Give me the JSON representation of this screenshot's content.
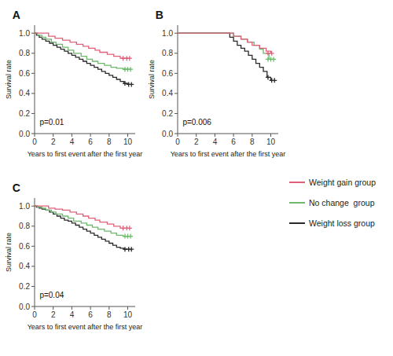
{
  "chart_data": [
    {
      "type": "step",
      "title": "A",
      "annotation": "p=0.01",
      "x_label": "Years to first event after the first year",
      "y_label": "Survival rate",
      "xlim": [
        0,
        10.8
      ],
      "ylim": [
        0.0,
        1.08
      ],
      "xticks": [
        0,
        2,
        4,
        6,
        8,
        10
      ],
      "yticks": [
        {
          "value": 0.0,
          "label": "0.0"
        },
        0.2,
        0.4,
        0.6,
        0.8,
        {
          "value": 1.0,
          "label": "1.0"
        }
      ],
      "legend": "right",
      "series": [
        {
          "name": "Weight gain group",
          "color": "#e0607a",
          "x": [
            0,
            1.0,
            1.5,
            2.2,
            3.0,
            3.8,
            4.5,
            5.2,
            5.8,
            6.5,
            7.0,
            7.8,
            8.5,
            9.2,
            10.0
          ],
          "values": [
            1.0,
            1.0,
            0.97,
            0.95,
            0.93,
            0.91,
            0.89,
            0.87,
            0.85,
            0.83,
            0.81,
            0.79,
            0.77,
            0.75,
            0.75
          ],
          "censor_x": [
            9.5,
            9.9,
            10.2
          ],
          "censor_y": [
            0.75,
            0.75,
            0.75
          ]
        },
        {
          "name": "No change  group",
          "color": "#6db86d",
          "x": [
            0,
            0.3,
            0.8,
            1.2,
            1.8,
            2.3,
            3.0,
            3.6,
            4.2,
            5.0,
            5.6,
            6.2,
            6.8,
            7.5,
            8.2,
            8.8,
            9.5,
            10.0
          ],
          "values": [
            1.0,
            0.98,
            0.96,
            0.94,
            0.91,
            0.89,
            0.86,
            0.83,
            0.8,
            0.77,
            0.74,
            0.72,
            0.7,
            0.68,
            0.66,
            0.65,
            0.64,
            0.64
          ],
          "censor_x": [
            9.7,
            10.0,
            10.3
          ],
          "censor_y": [
            0.64,
            0.64,
            0.64
          ]
        },
        {
          "name": "Weight loss group",
          "color": "#2a2a2a",
          "x": [
            0,
            0.2,
            0.5,
            0.8,
            1.2,
            1.6,
            2.0,
            2.4,
            2.8,
            3.2,
            3.6,
            4.0,
            4.4,
            4.8,
            5.2,
            5.6,
            6.0,
            6.4,
            6.8,
            7.2,
            7.6,
            8.0,
            8.4,
            8.8,
            9.2,
            9.6,
            10.0
          ],
          "values": [
            1.0,
            0.98,
            0.96,
            0.94,
            0.92,
            0.9,
            0.88,
            0.86,
            0.84,
            0.82,
            0.8,
            0.78,
            0.76,
            0.74,
            0.72,
            0.7,
            0.68,
            0.66,
            0.64,
            0.62,
            0.6,
            0.58,
            0.56,
            0.54,
            0.52,
            0.5,
            0.49
          ],
          "censor_x": [
            9.7,
            10.1,
            10.4
          ],
          "censor_y": [
            0.5,
            0.49,
            0.49
          ]
        }
      ]
    },
    {
      "type": "step",
      "title": "B",
      "annotation": "p=0.006",
      "x_label": "Years to first event after the first year",
      "y_label": "Survival rate",
      "xlim": [
        0,
        10.8
      ],
      "ylim": [
        0.0,
        1.08
      ],
      "xticks": [
        0,
        2,
        4,
        6,
        8,
        10
      ],
      "yticks": [
        {
          "value": 0.0,
          "label": "0.0"
        },
        0.2,
        0.4,
        0.6,
        0.8,
        {
          "value": 1.0,
          "label": "1.0"
        }
      ],
      "series": [
        {
          "color": "#e0607a",
          "x": [
            0,
            2.0,
            4.0,
            5.5,
            6.0,
            6.8,
            7.5,
            8.0,
            8.8,
            9.5,
            10.0
          ],
          "values": [
            1.0,
            1.0,
            1.0,
            1.0,
            0.97,
            0.94,
            0.91,
            0.88,
            0.85,
            0.82,
            0.8
          ],
          "censor_x": [
            9.7,
            10.1
          ],
          "censor_y": [
            0.8,
            0.8
          ]
        },
        {
          "color": "#6db86d",
          "x": [
            0,
            2.0,
            4.0,
            5.5,
            6.0,
            6.8,
            7.5,
            8.2,
            8.8,
            9.2,
            9.8,
            10.0
          ],
          "values": [
            1.0,
            1.0,
            1.0,
            1.0,
            0.97,
            0.94,
            0.91,
            0.88,
            0.84,
            0.8,
            0.74,
            0.74
          ],
          "censor_x": [
            9.7,
            10.0,
            10.3
          ],
          "censor_y": [
            0.74,
            0.74,
            0.74
          ]
        },
        {
          "color": "#2a2a2a",
          "x": [
            0,
            2.0,
            4.0,
            5.2,
            5.6,
            6.0,
            6.4,
            6.8,
            7.2,
            7.6,
            8.0,
            8.4,
            8.8,
            9.2,
            9.6,
            10.0
          ],
          "values": [
            1.0,
            1.0,
            1.0,
            1.0,
            0.96,
            0.92,
            0.88,
            0.85,
            0.82,
            0.78,
            0.74,
            0.7,
            0.66,
            0.62,
            0.56,
            0.53
          ],
          "censor_x": [
            9.7,
            10.1,
            10.4
          ],
          "censor_y": [
            0.56,
            0.53,
            0.53
          ]
        }
      ]
    },
    {
      "type": "step",
      "title": "C",
      "annotation": "p=0.04",
      "x_label": "Years to first event after the first year",
      "y_label": "Survival rate",
      "xlim": [
        0,
        10.8
      ],
      "ylim": [
        0.0,
        1.08
      ],
      "xticks": [
        0,
        2,
        4,
        6,
        8,
        10
      ],
      "yticks": [
        {
          "value": 0.0,
          "label": "0.0"
        },
        0.2,
        0.4,
        0.6,
        0.8,
        {
          "value": 1.0,
          "label": "1.0"
        }
      ],
      "series": [
        {
          "color": "#e0607a",
          "x": [
            0,
            0.8,
            1.5,
            2.2,
            3.0,
            3.8,
            4.5,
            5.2,
            5.8,
            6.5,
            7.0,
            7.8,
            8.5,
            9.2,
            10.0
          ],
          "values": [
            1.0,
            1.0,
            0.98,
            0.97,
            0.96,
            0.94,
            0.92,
            0.9,
            0.88,
            0.86,
            0.84,
            0.82,
            0.8,
            0.78,
            0.78
          ],
          "censor_x": [
            9.5,
            9.9,
            10.2
          ],
          "censor_y": [
            0.78,
            0.78,
            0.78
          ]
        },
        {
          "color": "#6db86d",
          "x": [
            0,
            0.3,
            0.8,
            1.2,
            1.8,
            2.3,
            3.0,
            3.6,
            4.2,
            5.0,
            5.6,
            6.2,
            6.8,
            7.5,
            8.2,
            8.8,
            9.5,
            10.0
          ],
          "values": [
            1.0,
            0.99,
            0.98,
            0.96,
            0.94,
            0.92,
            0.9,
            0.88,
            0.85,
            0.83,
            0.81,
            0.79,
            0.77,
            0.75,
            0.73,
            0.71,
            0.7,
            0.7
          ],
          "censor_x": [
            9.7,
            10.0,
            10.3
          ],
          "censor_y": [
            0.7,
            0.7,
            0.7
          ]
        },
        {
          "color": "#2a2a2a",
          "x": [
            0,
            0.2,
            0.5,
            0.8,
            1.2,
            1.6,
            2.0,
            2.4,
            2.8,
            3.2,
            3.6,
            4.0,
            4.4,
            4.8,
            5.2,
            5.6,
            6.0,
            6.4,
            6.8,
            7.2,
            7.6,
            8.0,
            8.4,
            8.8,
            9.2,
            9.6,
            10.0
          ],
          "values": [
            1.0,
            0.99,
            0.98,
            0.97,
            0.96,
            0.94,
            0.92,
            0.9,
            0.88,
            0.86,
            0.85,
            0.83,
            0.81,
            0.79,
            0.77,
            0.75,
            0.73,
            0.71,
            0.69,
            0.67,
            0.65,
            0.63,
            0.61,
            0.59,
            0.58,
            0.57,
            0.57
          ],
          "censor_x": [
            9.7,
            10.1,
            10.4
          ],
          "censor_y": [
            0.57,
            0.57,
            0.57
          ]
        }
      ]
    }
  ]
}
